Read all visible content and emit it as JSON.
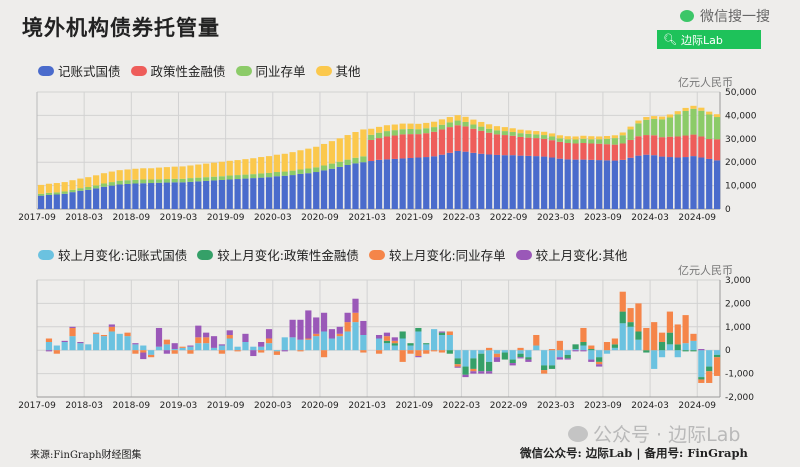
{
  "header": {
    "title": "境外机构债券托管量",
    "wechat_search": "微信搜一搜",
    "search_text": "边际Lab"
  },
  "footer": {
    "source": "来源:FinGraph财经图集",
    "watermark": "公众号 · 边际Lab",
    "account": "微信公众号: 边际Lab  |  备用号: FinGraph"
  },
  "colors": {
    "gov": "#4a6bcc",
    "policy": "#ee5d5a",
    "ncd": "#8ccb68",
    "other": "#fbc84c",
    "d_gov": "#6bc2e0",
    "d_policy": "#35a068",
    "d_ncd": "#f58549",
    "d_other": "#9a58b8"
  },
  "chart_data": [
    {
      "type": "bar",
      "stacked": true,
      "unit": "亿元人民币",
      "ylim": [
        0,
        50000
      ],
      "yticks": [
        "0",
        "10,000",
        "20,000",
        "30,000",
        "40,000",
        "50,000"
      ],
      "ytick_values": [
        0,
        10000,
        20000,
        30000,
        40000,
        50000
      ],
      "xticks": [
        "2017-09",
        "2018-03",
        "2018-09",
        "2019-03",
        "2019-09",
        "2020-03",
        "2020-09",
        "2021-03",
        "2021-09",
        "2022-03",
        "2022-09",
        "2023-03",
        "2023-09",
        "2024-03",
        "2024-09"
      ],
      "x_start": "2017-09",
      "x_end": "2024-11",
      "grid": true,
      "legend": "top-left",
      "series": [
        {
          "name": "记账式国债",
          "color_key": "gov",
          "values": [
            5700,
            6000,
            6200,
            6500,
            7200,
            7800,
            8200,
            8800,
            9500,
            10000,
            10500,
            10700,
            10900,
            11000,
            11100,
            11200,
            11300,
            11400,
            11400,
            11600,
            11800,
            12000,
            12200,
            12400,
            12600,
            12800,
            13000,
            13200,
            13400,
            13600,
            14000,
            14200,
            14500,
            15000,
            15300,
            15800,
            16500,
            17200,
            18000,
            18800,
            19500,
            20000,
            20500,
            21000,
            21200,
            21400,
            21600,
            21800,
            22000,
            22200,
            22500,
            23200,
            24000,
            24800,
            24500,
            24000,
            23600,
            23300,
            23100,
            23000,
            23000,
            22800,
            22700,
            22600,
            22400,
            22000,
            21500,
            21200,
            21100,
            21100,
            21000,
            20900,
            20800,
            20700,
            21000,
            21900,
            22800,
            23200,
            23000,
            22400,
            22200,
            22000,
            22200,
            22600,
            22000,
            21400,
            20800
          ]
        },
        {
          "name": "政策性金融债",
          "color_key": "policy",
          "values": [
            0,
            0,
            0,
            0,
            0,
            0,
            0,
            0,
            0,
            0,
            0,
            0,
            0,
            0,
            0,
            0,
            0,
            0,
            0,
            0,
            0,
            0,
            0,
            0,
            0,
            0,
            0,
            0,
            0,
            0,
            0,
            0,
            0,
            0,
            0,
            0,
            0,
            0,
            0,
            0,
            0,
            0,
            9000,
            9300,
            9800,
            10000,
            10300,
            10200,
            10000,
            10200,
            10500,
            10800,
            11000,
            11000,
            10800,
            10300,
            9800,
            9300,
            8800,
            8600,
            8300,
            8000,
            7800,
            7700,
            7600,
            7400,
            7200,
            7000,
            6900,
            7100,
            7000,
            7000,
            6900,
            6800,
            7000,
            7600,
            8300,
            8400,
            8500,
            8300,
            8700,
            9000,
            9200,
            9200,
            9000,
            8500,
            9000
          ]
        },
        {
          "name": "同业存单",
          "color_key": "ncd",
          "values": [
            800,
            900,
            900,
            1000,
            1000,
            1100,
            1200,
            1300,
            1400,
            1500,
            1600,
            1600,
            1600,
            1600,
            1500,
            1500,
            1500,
            1500,
            1500,
            1600,
            1600,
            1600,
            1600,
            1600,
            1700,
            1700,
            1700,
            1700,
            1800,
            1800,
            1800,
            1800,
            1900,
            1900,
            2000,
            2000,
            2100,
            2200,
            2200,
            2300,
            2400,
            2500,
            2200,
            2300,
            2300,
            2300,
            2200,
            2200,
            2100,
            2100,
            2000,
            2000,
            2000,
            2000,
            1900,
            1800,
            1800,
            1700,
            1700,
            1700,
            1600,
            1600,
            1600,
            1600,
            1600,
            1600,
            1500,
            1600,
            1700,
            1800,
            1800,
            1900,
            2300,
            2800,
            3500,
            4500,
            5500,
            6500,
            7000,
            7600,
            8200,
            9500,
            10500,
            11000,
            11000,
            10500,
            9500
          ]
        },
        {
          "name": "其他",
          "color_key": "other",
          "values": [
            3800,
            3900,
            4000,
            4000,
            4100,
            4100,
            4200,
            4300,
            4400,
            4500,
            4500,
            4600,
            4700,
            4800,
            4800,
            5000,
            5100,
            5200,
            5300,
            5400,
            5600,
            5800,
            6000,
            6200,
            6300,
            6400,
            6600,
            6800,
            7000,
            7200,
            7400,
            7600,
            7900,
            8200,
            8500,
            8800,
            9200,
            9600,
            10000,
            10500,
            11000,
            11500,
            2600,
            2500,
            2500,
            2400,
            2400,
            2300,
            2300,
            2300,
            2300,
            2300,
            2300,
            2300,
            2200,
            2100,
            2000,
            1900,
            1800,
            1700,
            1600,
            1500,
            1500,
            1400,
            1400,
            1300,
            1300,
            1300,
            1300,
            1300,
            1300,
            1200,
            1200,
            1200,
            1200,
            1200,
            1200,
            1200,
            1200,
            1200,
            1300,
            1300,
            1300,
            1300,
            1300,
            1200,
            1200
          ]
        }
      ]
    },
    {
      "type": "bar",
      "stacked": true,
      "unit": "亿元人民币",
      "ylim": [
        -2000,
        3000
      ],
      "yticks": [
        "-2,000",
        "-1,000",
        "0",
        "1,000",
        "2,000",
        "3,000"
      ],
      "ytick_values": [
        -2000,
        -1000,
        0,
        1000,
        2000,
        3000
      ],
      "xticks": [
        "2017-09",
        "2018-03",
        "2018-09",
        "2019-03",
        "2019-09",
        "2020-03",
        "2020-09",
        "2021-03",
        "2021-09",
        "2022-03",
        "2022-09",
        "2023-03",
        "2023-09",
        "2024-03",
        "2024-09"
      ],
      "x_start": "2017-09",
      "x_end": "2024-11",
      "grid": true,
      "legend": "top-left",
      "series": [
        {
          "name": "较上月变化:记账式国债",
          "color_key": "d_gov",
          "values": [
            null,
            350,
            200,
            350,
            600,
            300,
            250,
            700,
            600,
            800,
            700,
            600,
            250,
            200,
            -200,
            150,
            250,
            50,
            100,
            150,
            300,
            300,
            100,
            200,
            500,
            150,
            350,
            150,
            150,
            300,
            -50,
            550,
            550,
            450,
            450,
            600,
            800,
            500,
            600,
            800,
            1200,
            650,
            null,
            500,
            300,
            200,
            500,
            200,
            800,
            250,
            900,
            650,
            650,
            -350,
            -700,
            -350,
            -150,
            -500,
            -150,
            -100,
            -400,
            -150,
            -300,
            200,
            -650,
            -650,
            -300,
            -200,
            50,
            200,
            -400,
            -300,
            -150,
            100,
            1150,
            1000,
            450,
            0,
            -800,
            -300,
            250,
            -300,
            300,
            400,
            -1150,
            -700,
            -200
          ]
        },
        {
          "name": "较上月变化:政策性金融债",
          "color_key": "d_policy",
          "values": [
            null,
            0,
            0,
            0,
            0,
            0,
            0,
            0,
            0,
            0,
            0,
            0,
            0,
            0,
            0,
            0,
            0,
            0,
            0,
            0,
            0,
            0,
            0,
            0,
            0,
            0,
            0,
            0,
            0,
            0,
            0,
            0,
            0,
            0,
            0,
            0,
            0,
            0,
            0,
            0,
            0,
            0,
            null,
            0,
            100,
            100,
            300,
            100,
            150,
            50,
            0,
            100,
            -150,
            -250,
            -350,
            -450,
            -750,
            -400,
            0,
            -300,
            -150,
            -150,
            -100,
            0,
            -200,
            -150,
            0,
            -150,
            200,
            150,
            50,
            -200,
            0,
            150,
            500,
            200,
            350,
            -100,
            0,
            350,
            500,
            250,
            -50,
            -50,
            -100,
            -200,
            -100
          ]
        },
        {
          "name": "较上月变化:同业存单",
          "color_key": "d_ncd",
          "values": [
            null,
            150,
            -150,
            0,
            350,
            0,
            0,
            50,
            50,
            200,
            0,
            150,
            -150,
            -100,
            -100,
            0,
            200,
            -150,
            50,
            -150,
            250,
            250,
            0,
            -150,
            150,
            -50,
            0,
            0,
            -100,
            200,
            -150,
            0,
            0,
            -50,
            50,
            100,
            -300,
            0,
            100,
            400,
            400,
            -100,
            null,
            -150,
            200,
            100,
            -500,
            -150,
            -250,
            -150,
            -50,
            -100,
            150,
            -100,
            0,
            -100,
            0,
            100,
            -150,
            0,
            0,
            100,
            0,
            450,
            -150,
            50,
            400,
            0,
            0,
            600,
            150,
            -100,
            350,
            250,
            850,
            600,
            1200,
            950,
            1200,
            400,
            900,
            850,
            1200,
            300,
            -150,
            -500,
            -800
          ]
        },
        {
          "name": "较上月变化:其他",
          "color_key": "d_other",
          "values": [
            null,
            -50,
            0,
            50,
            50,
            50,
            0,
            0,
            0,
            100,
            0,
            0,
            50,
            -280,
            0,
            800,
            -150,
            250,
            0,
            50,
            500,
            200,
            500,
            50,
            200,
            0,
            350,
            -250,
            200,
            400,
            0,
            -50,
            750,
            850,
            1200,
            700,
            800,
            400,
            300,
            400,
            600,
            600,
            null,
            150,
            150,
            150,
            0,
            0,
            -50,
            0,
            0,
            50,
            0,
            -50,
            -100,
            -100,
            -100,
            -100,
            -200,
            0,
            -100,
            -50,
            -100,
            0,
            0,
            0,
            -100,
            -50,
            -50,
            -50,
            -100,
            -100,
            0,
            0,
            0,
            0,
            0,
            0,
            0,
            0,
            0,
            0,
            0,
            0,
            50,
            0,
            0
          ]
        }
      ]
    }
  ]
}
